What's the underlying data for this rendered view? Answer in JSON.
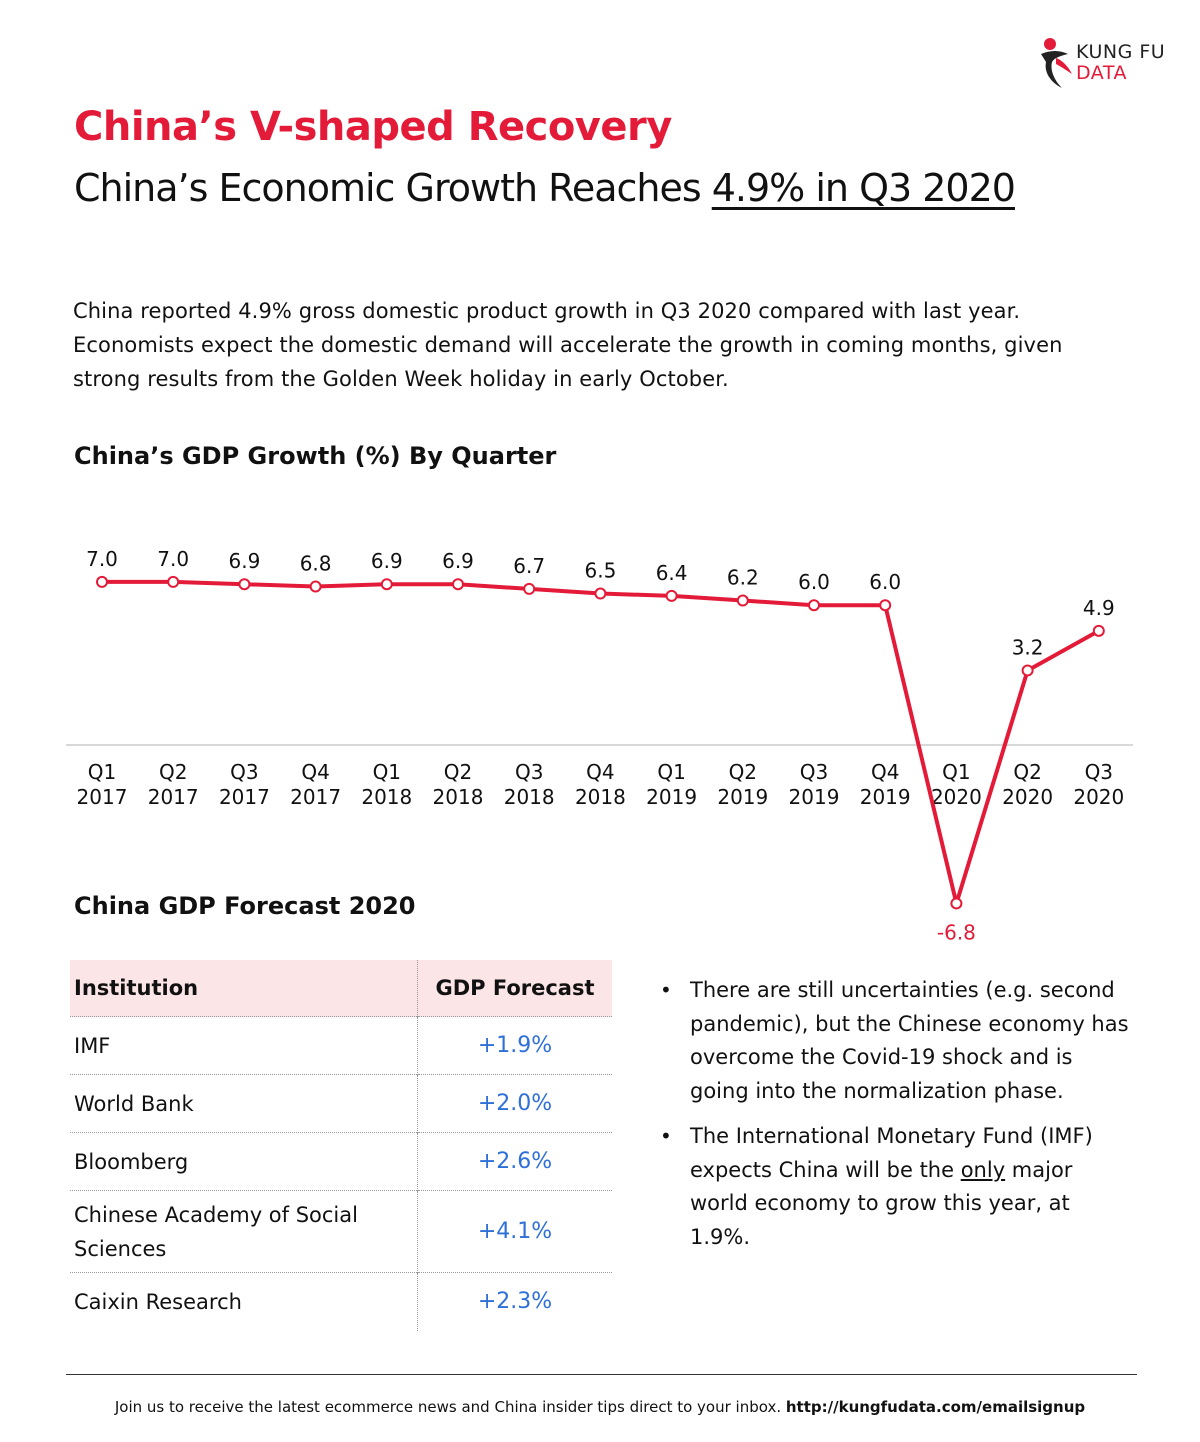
{
  "brand": {
    "line1": "KUNG FU",
    "line2": "DATA",
    "accent": "#e31b39"
  },
  "header": {
    "title": "China’s V-shaped Recovery",
    "subtitle_prefix": "China’s Economic Growth Reaches ",
    "subtitle_highlight": "4.9% in Q3 2020"
  },
  "intro": {
    "line1": "China reported 4.9% gross domestic product growth in Q3 2020 compared with last year.",
    "line2": "Economists expect the domestic demand will accelerate the growth in coming months, given",
    "line3": "strong results from the Golden Week holiday in early October."
  },
  "chart_title": "China’s GDP Growth (%) By Quarter",
  "chart_data": {
    "type": "line",
    "title": "China’s GDP Growth (%) By Quarter",
    "xlabel": "",
    "ylabel": "",
    "categories": [
      [
        "Q1",
        "2017"
      ],
      [
        "Q2",
        "2017"
      ],
      [
        "Q3",
        "2017"
      ],
      [
        "Q4",
        "2017"
      ],
      [
        "Q1",
        "2018"
      ],
      [
        "Q2",
        "2018"
      ],
      [
        "Q3",
        "2018"
      ],
      [
        "Q4",
        "2018"
      ],
      [
        "Q1",
        "2019"
      ],
      [
        "Q2",
        "2019"
      ],
      [
        "Q3",
        "2019"
      ],
      [
        "Q4",
        "2019"
      ],
      [
        "Q1",
        "2020"
      ],
      [
        "Q2",
        "2020"
      ],
      [
        "Q3",
        "2020"
      ]
    ],
    "values": [
      7.0,
      7.0,
      6.9,
      6.8,
      6.9,
      6.9,
      6.7,
      6.5,
      6.4,
      6.2,
      6.0,
      6.0,
      -6.8,
      3.2,
      4.9
    ],
    "labels": [
      "7.0",
      "7.0",
      "6.9",
      "6.8",
      "6.9",
      "6.9",
      "6.7",
      "6.5",
      "6.4",
      "6.2",
      "6.0",
      "6.0",
      "-6.8",
      "3.2",
      "4.9"
    ],
    "line_color": "#e31b39",
    "negative_label_color": "#e31b39",
    "grid": false,
    "legend": "none"
  },
  "forecast": {
    "title": "China GDP Forecast 2020",
    "headers": {
      "institution": "Institution",
      "forecast": "GDP Forecast"
    },
    "rows": [
      {
        "institution": "IMF",
        "value": "+1.9%"
      },
      {
        "institution": "World Bank",
        "value": "+2.0%"
      },
      {
        "institution": "Bloomberg",
        "value": "+2.6%"
      },
      {
        "institution": "Chinese Academy of Social Sciences",
        "value": "+4.1%"
      },
      {
        "institution": "Caixin Research",
        "value": "+2.3%"
      }
    ],
    "value_color": "#2e6fd8",
    "header_bg": "#fbe5e7"
  },
  "bullets": {
    "b1": "There are still uncertainties (e.g. second pandemic), but the Chinese economy has overcome the Covid-19 shock and is going into the normalization phase.",
    "b2_pre": "The International Monetary Fund (IMF) expects China will be the ",
    "b2_u": "only",
    "b2_post": " major world economy to grow this year, at 1.9%."
  },
  "footer": {
    "text": "Join us to receive the latest ecommerce news and China insider tips direct to your inbox. ",
    "link": "http://kungfudata.com/emailsignup"
  }
}
